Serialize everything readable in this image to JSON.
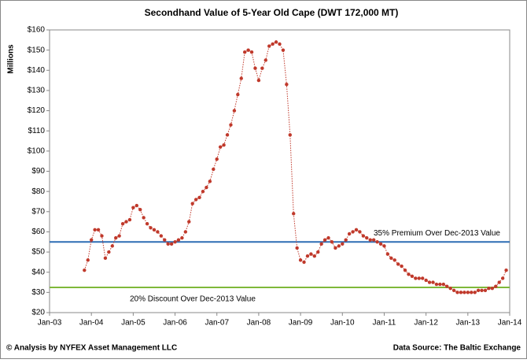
{
  "chart_data": {
    "type": "line",
    "title": "Secondhand Value of 5-Year Old Cape (DWT 172,000 MT)",
    "y_label": "Millions",
    "footer_left": "© Analysis by NYFEX Asset Management LLC",
    "footer_right": "Data Source: The Baltic Exchange",
    "x": [
      "2003-11",
      "2003-12",
      "2004-01",
      "2004-02",
      "2004-03",
      "2004-04",
      "2004-05",
      "2004-06",
      "2004-07",
      "2004-08",
      "2004-09",
      "2004-10",
      "2004-11",
      "2004-12",
      "2005-01",
      "2005-02",
      "2005-03",
      "2005-04",
      "2005-05",
      "2005-06",
      "2005-07",
      "2005-08",
      "2005-09",
      "2005-10",
      "2005-11",
      "2005-12",
      "2006-01",
      "2006-02",
      "2006-03",
      "2006-04",
      "2006-05",
      "2006-06",
      "2006-07",
      "2006-08",
      "2006-09",
      "2006-10",
      "2006-11",
      "2006-12",
      "2007-01",
      "2007-02",
      "2007-03",
      "2007-04",
      "2007-05",
      "2007-06",
      "2007-07",
      "2007-08",
      "2007-09",
      "2007-10",
      "2007-11",
      "2007-12",
      "2008-01",
      "2008-02",
      "2008-03",
      "2008-04",
      "2008-05",
      "2008-06",
      "2008-07",
      "2008-08",
      "2008-09",
      "2008-10",
      "2008-11",
      "2008-12",
      "2009-01",
      "2009-02",
      "2009-03",
      "2009-04",
      "2009-05",
      "2009-06",
      "2009-07",
      "2009-08",
      "2009-09",
      "2009-10",
      "2009-11",
      "2009-12",
      "2010-01",
      "2010-02",
      "2010-03",
      "2010-04",
      "2010-05",
      "2010-06",
      "2010-07",
      "2010-08",
      "2010-09",
      "2010-10",
      "2010-11",
      "2010-12",
      "2011-01",
      "2011-02",
      "2011-03",
      "2011-04",
      "2011-05",
      "2011-06",
      "2011-07",
      "2011-08",
      "2011-09",
      "2011-10",
      "2011-11",
      "2011-12",
      "2012-01",
      "2012-02",
      "2012-03",
      "2012-04",
      "2012-05",
      "2012-06",
      "2012-07",
      "2012-08",
      "2012-09",
      "2012-10",
      "2012-11",
      "2012-12",
      "2013-01",
      "2013-02",
      "2013-03",
      "2013-04",
      "2013-05",
      "2013-06",
      "2013-07",
      "2013-08",
      "2013-09",
      "2013-10",
      "2013-11",
      "2013-12"
    ],
    "series": [
      {
        "name": "Secondhand Value",
        "color": "#c0392b",
        "values": [
          41,
          46,
          56,
          61,
          61,
          58,
          47,
          50,
          53,
          57,
          58,
          64,
          65,
          66,
          72,
          73,
          71,
          67,
          64,
          62,
          61,
          60,
          58,
          56,
          54,
          54,
          55,
          56,
          57,
          60,
          65,
          74,
          76,
          77,
          80,
          82,
          85,
          91,
          96,
          102,
          103,
          108,
          113,
          120,
          128,
          136,
          149,
          150,
          149,
          141,
          135,
          141,
          145,
          152,
          153,
          154,
          153,
          150,
          133,
          108,
          69,
          52,
          46,
          45,
          48,
          49,
          48,
          50,
          54,
          56,
          57,
          55,
          52,
          53,
          54,
          56,
          59,
          60,
          61,
          60,
          58,
          57,
          56,
          56,
          55,
          54,
          53,
          49,
          47,
          46,
          44,
          43,
          41,
          39,
          38,
          37,
          37,
          37,
          36,
          35,
          35,
          34,
          34,
          34,
          33,
          32,
          31,
          30,
          30,
          30,
          30,
          30,
          30,
          31,
          31,
          31,
          32,
          32,
          33,
          35,
          37,
          41
        ]
      }
    ],
    "reference_lines": [
      {
        "label": "35% Premium Over Dec-2013 Value",
        "value": 55,
        "color": "#2e6db4"
      },
      {
        "label": "20% Discount Over Dec-2013 Value",
        "value": 32.5,
        "color": "#7fb83a"
      }
    ],
    "xlim": [
      "2003-01",
      "2014-01"
    ],
    "xticks": [
      {
        "value": "2003-01",
        "label": "Jan-03"
      },
      {
        "value": "2004-01",
        "label": "Jan-04"
      },
      {
        "value": "2005-01",
        "label": "Jan-05"
      },
      {
        "value": "2006-01",
        "label": "Jan-06"
      },
      {
        "value": "2007-01",
        "label": "Jan-07"
      },
      {
        "value": "2008-01",
        "label": "Jan-08"
      },
      {
        "value": "2009-01",
        "label": "Jan-09"
      },
      {
        "value": "2010-01",
        "label": "Jan-10"
      },
      {
        "value": "2011-01",
        "label": "Jan-11"
      },
      {
        "value": "2012-01",
        "label": "Jan-12"
      },
      {
        "value": "2013-01",
        "label": "Jan-13"
      },
      {
        "value": "2014-01",
        "label": "Jan-14"
      }
    ],
    "ylim": [
      20,
      160
    ],
    "yticks": [
      {
        "value": 20,
        "label": "$20"
      },
      {
        "value": 30,
        "label": "$30"
      },
      {
        "value": 40,
        "label": "$40"
      },
      {
        "value": 50,
        "label": "$50"
      },
      {
        "value": 60,
        "label": "$60"
      },
      {
        "value": 70,
        "label": "$70"
      },
      {
        "value": 80,
        "label": "$80"
      },
      {
        "value": 90,
        "label": "$90"
      },
      {
        "value": 100,
        "label": "$100"
      },
      {
        "value": 110,
        "label": "$110"
      },
      {
        "value": 120,
        "label": "$120"
      },
      {
        "value": 130,
        "label": "$130"
      },
      {
        "value": 140,
        "label": "$140"
      },
      {
        "value": 150,
        "label": "$150"
      },
      {
        "value": 160,
        "label": "$160"
      }
    ]
  }
}
